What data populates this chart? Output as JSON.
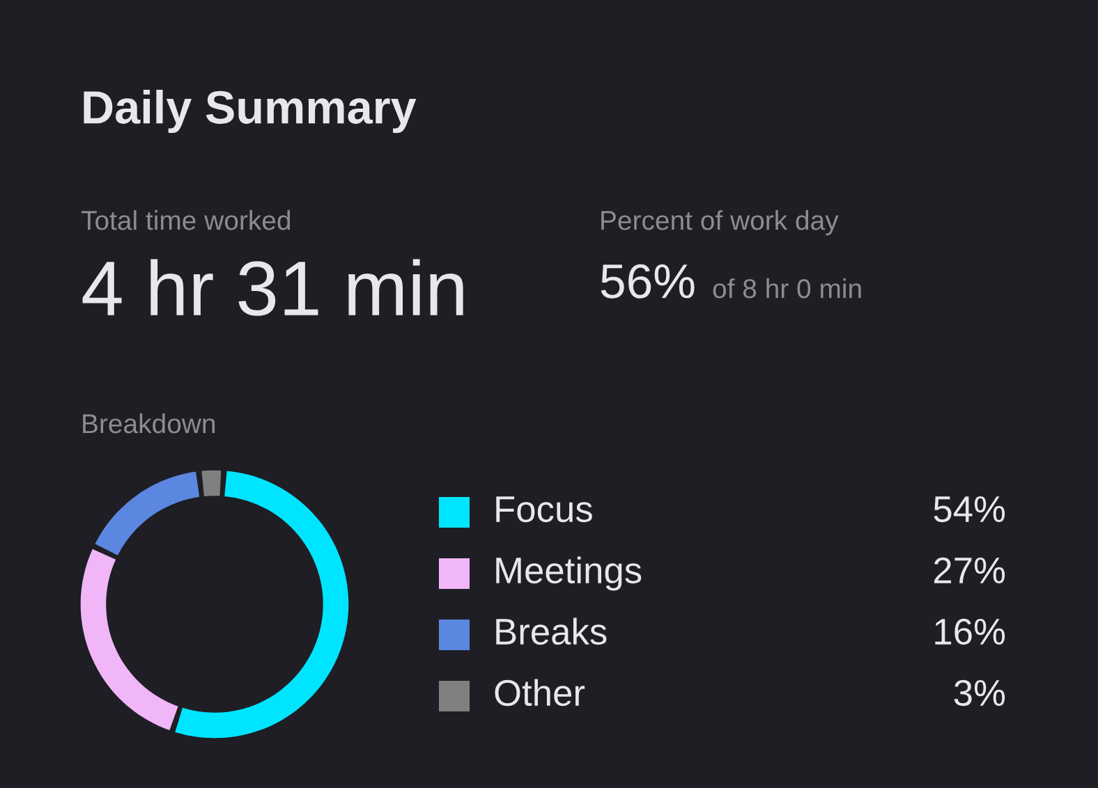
{
  "chart_data": {
    "type": "donut",
    "title": "Daily Summary",
    "annotations": [
      "Total time worked",
      "4 hr 31 min",
      "Percent of work day",
      "56%",
      "of 8 hr 0 min",
      "Breakdown"
    ],
    "categories": [
      "Focus",
      "Meetings",
      "Breaks",
      "Other"
    ],
    "values": [
      54,
      27,
      16,
      3
    ],
    "colors": [
      "#00e5ff",
      "#f0b6f8",
      "#5b87e0",
      "#808080"
    ],
    "value_labels": [
      "54%",
      "27%",
      "16%",
      "3%"
    ],
    "legend": "right"
  }
}
